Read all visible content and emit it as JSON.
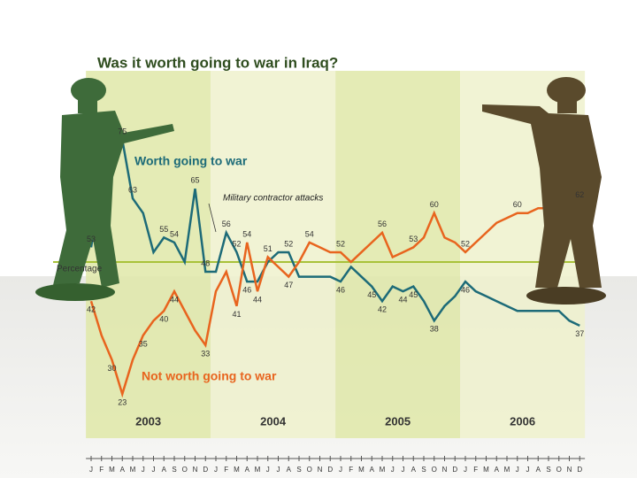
{
  "chart_data": {
    "type": "line",
    "title": "Was it worth going to war in Iraq?",
    "categories": [
      "J",
      "F",
      "M",
      "A",
      "M",
      "J",
      "J",
      "A",
      "S",
      "O",
      "N",
      "D",
      "J",
      "F",
      "M",
      "A",
      "M",
      "J",
      "J",
      "A",
      "S",
      "O",
      "N",
      "D",
      "J",
      "F",
      "M",
      "A",
      "M",
      "J",
      "J",
      "A",
      "S",
      "O",
      "N",
      "D",
      "J",
      "F",
      "M",
      "A",
      "M",
      "J",
      "J",
      "A",
      "S",
      "O",
      "N",
      "D"
    ],
    "years": [
      "2003",
      "2004",
      "2005",
      "2006"
    ],
    "series": [
      {
        "name": "Worth going to war",
        "color": "#1d6b78",
        "values": [
          53,
          66,
          70,
          75,
          63,
          60,
          52,
          55,
          54,
          50,
          65,
          48,
          48,
          56,
          52,
          46,
          46,
          50,
          52,
          52,
          47,
          47,
          47,
          47,
          46,
          49,
          47,
          45,
          42,
          45,
          44,
          45,
          42,
          38,
          41,
          43,
          46,
          44,
          43,
          42,
          41,
          40,
          40,
          40,
          40,
          40,
          38,
          37
        ],
        "value_labels": [
          "53",
          null,
          null,
          "75",
          "63",
          null,
          null,
          "55",
          "54",
          null,
          "65",
          "48",
          null,
          "56",
          "52",
          "46",
          null,
          null,
          null,
          "52",
          null,
          null,
          null,
          null,
          "46",
          null,
          null,
          "45",
          "42",
          null,
          "44",
          "45",
          null,
          "38",
          null,
          null,
          "46",
          null,
          null,
          null,
          null,
          null,
          null,
          null,
          null,
          null,
          null,
          "37"
        ]
      },
      {
        "name": "Not worth going to war",
        "color": "#e8641e",
        "values": [
          42,
          35,
          30,
          23,
          30,
          35,
          38,
          40,
          44,
          40,
          36,
          33,
          44,
          48,
          41,
          54,
          44,
          51,
          49,
          47,
          50,
          54,
          53,
          52,
          52,
          50,
          52,
          54,
          56,
          51,
          52,
          53,
          55,
          60,
          55,
          54,
          52,
          54,
          56,
          58,
          59,
          60,
          60,
          61,
          61,
          62,
          62,
          62
        ],
        "value_labels": [
          "42",
          null,
          "30",
          "23",
          null,
          "35",
          null,
          "40",
          "44",
          null,
          null,
          "33",
          null,
          null,
          "41",
          "54",
          "44",
          "51",
          null,
          "47",
          null,
          "54",
          null,
          null,
          "52",
          null,
          null,
          null,
          "56",
          null,
          null,
          "53",
          null,
          "60",
          null,
          null,
          "52",
          null,
          null,
          null,
          null,
          "60",
          null,
          null,
          null,
          null,
          null,
          "62"
        ]
      }
    ],
    "reference_line": {
      "value": 50,
      "label": "Percentage",
      "color": "#a8c23a"
    },
    "annotation": {
      "text": "Military contractor attacks",
      "index": 12
    },
    "ylim": [
      10,
      90
    ]
  }
}
